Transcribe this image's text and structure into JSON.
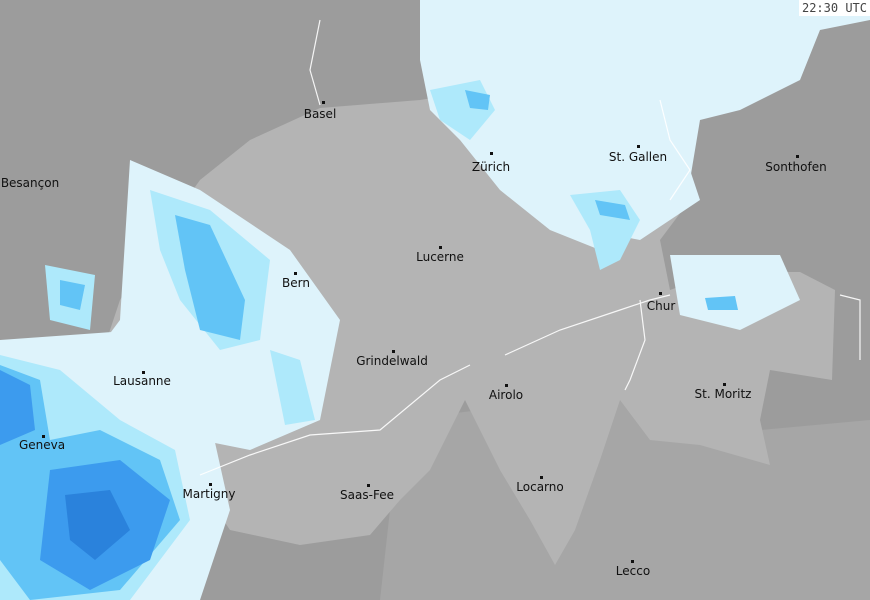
{
  "timestamp": "22:30 UTC",
  "colors": {
    "outside": "#9c9c9c",
    "switzerland": "#b4b4b4",
    "south": "#a6a6a6",
    "precip_light": "#def3fb",
    "precip_cyan": "#aee9fb",
    "precip_mid": "#62c4f6",
    "precip_blue": "#3c9bee",
    "precip_dark": "#2a82dc"
  },
  "cities": [
    {
      "name": "Basel"
    },
    {
      "name": "Besançon"
    },
    {
      "name": "Zürich"
    },
    {
      "name": "St. Gallen"
    },
    {
      "name": "Sonthofen"
    },
    {
      "name": "Lucerne"
    },
    {
      "name": "Bern"
    },
    {
      "name": "Chur"
    },
    {
      "name": "Grindelwald"
    },
    {
      "name": "Lausanne"
    },
    {
      "name": "Airolo"
    },
    {
      "name": "St. Moritz"
    },
    {
      "name": "Geneva"
    },
    {
      "name": "Martigny"
    },
    {
      "name": "Saas-Fee"
    },
    {
      "name": "Locarno"
    },
    {
      "name": "Lecco"
    }
  ]
}
